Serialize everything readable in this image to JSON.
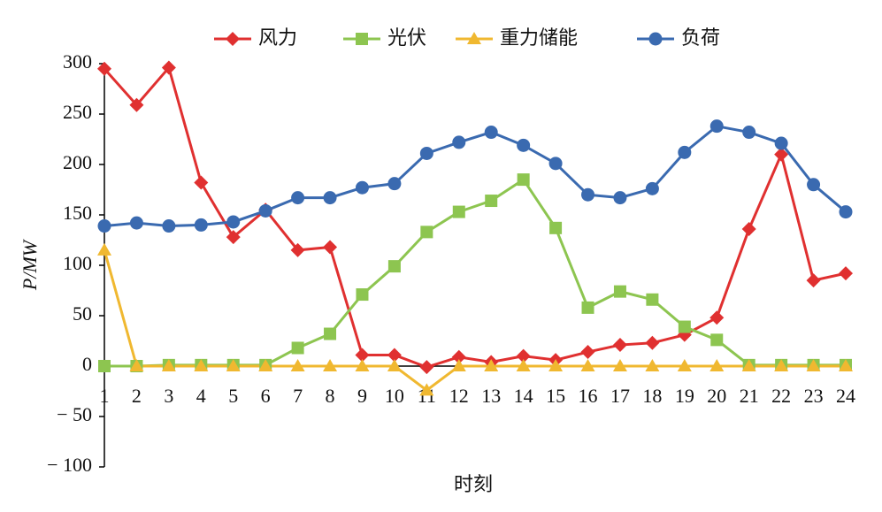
{
  "chart_data": {
    "type": "line",
    "x_label": "时刻",
    "y_label": "P/MW",
    "categories": [
      "1",
      "2",
      "3",
      "4",
      "5",
      "6",
      "7",
      "8",
      "9",
      "10",
      "11",
      "12",
      "13",
      "14",
      "15",
      "16",
      "17",
      "18",
      "19",
      "20",
      "21",
      "22",
      "23",
      "24"
    ],
    "series": [
      {
        "name": "风力",
        "color": "#e03030",
        "marker": "diamond",
        "values": [
          295,
          259,
          296,
          182,
          128,
          155,
          115,
          118,
          11,
          11,
          -1,
          9,
          4,
          10,
          6,
          14,
          21,
          23,
          31,
          48,
          136,
          210,
          85,
          92
        ]
      },
      {
        "name": "光伏",
        "color": "#8dc550",
        "marker": "square",
        "values": [
          0,
          0,
          1,
          1,
          1,
          1,
          18,
          32,
          71,
          99,
          133,
          153,
          164,
          185,
          137,
          58,
          74,
          66,
          39,
          26,
          1,
          1,
          1,
          1
        ]
      },
      {
        "name": "重力储能",
        "color": "#f0b830",
        "marker": "triangle",
        "values": [
          115,
          0,
          0,
          0,
          0,
          0,
          0,
          0,
          0,
          0,
          -24,
          0,
          0,
          0,
          0,
          0,
          0,
          0,
          0,
          0,
          0,
          0,
          0,
          0
        ]
      },
      {
        "name": "负荷",
        "color": "#3a6ab0",
        "marker": "circle",
        "values": [
          139,
          142,
          139,
          140,
          143,
          154,
          167,
          167,
          177,
          181,
          211,
          222,
          232,
          219,
          201,
          170,
          167,
          176,
          212,
          238,
          232,
          221,
          180,
          153
        ]
      }
    ],
    "ylim": [
      -100,
      300
    ],
    "yticks": [
      {
        "value": -100,
        "label": "− 100"
      },
      {
        "value": -50,
        "label": "− 50"
      },
      0,
      50,
      100,
      150,
      200,
      250,
      300
    ]
  }
}
